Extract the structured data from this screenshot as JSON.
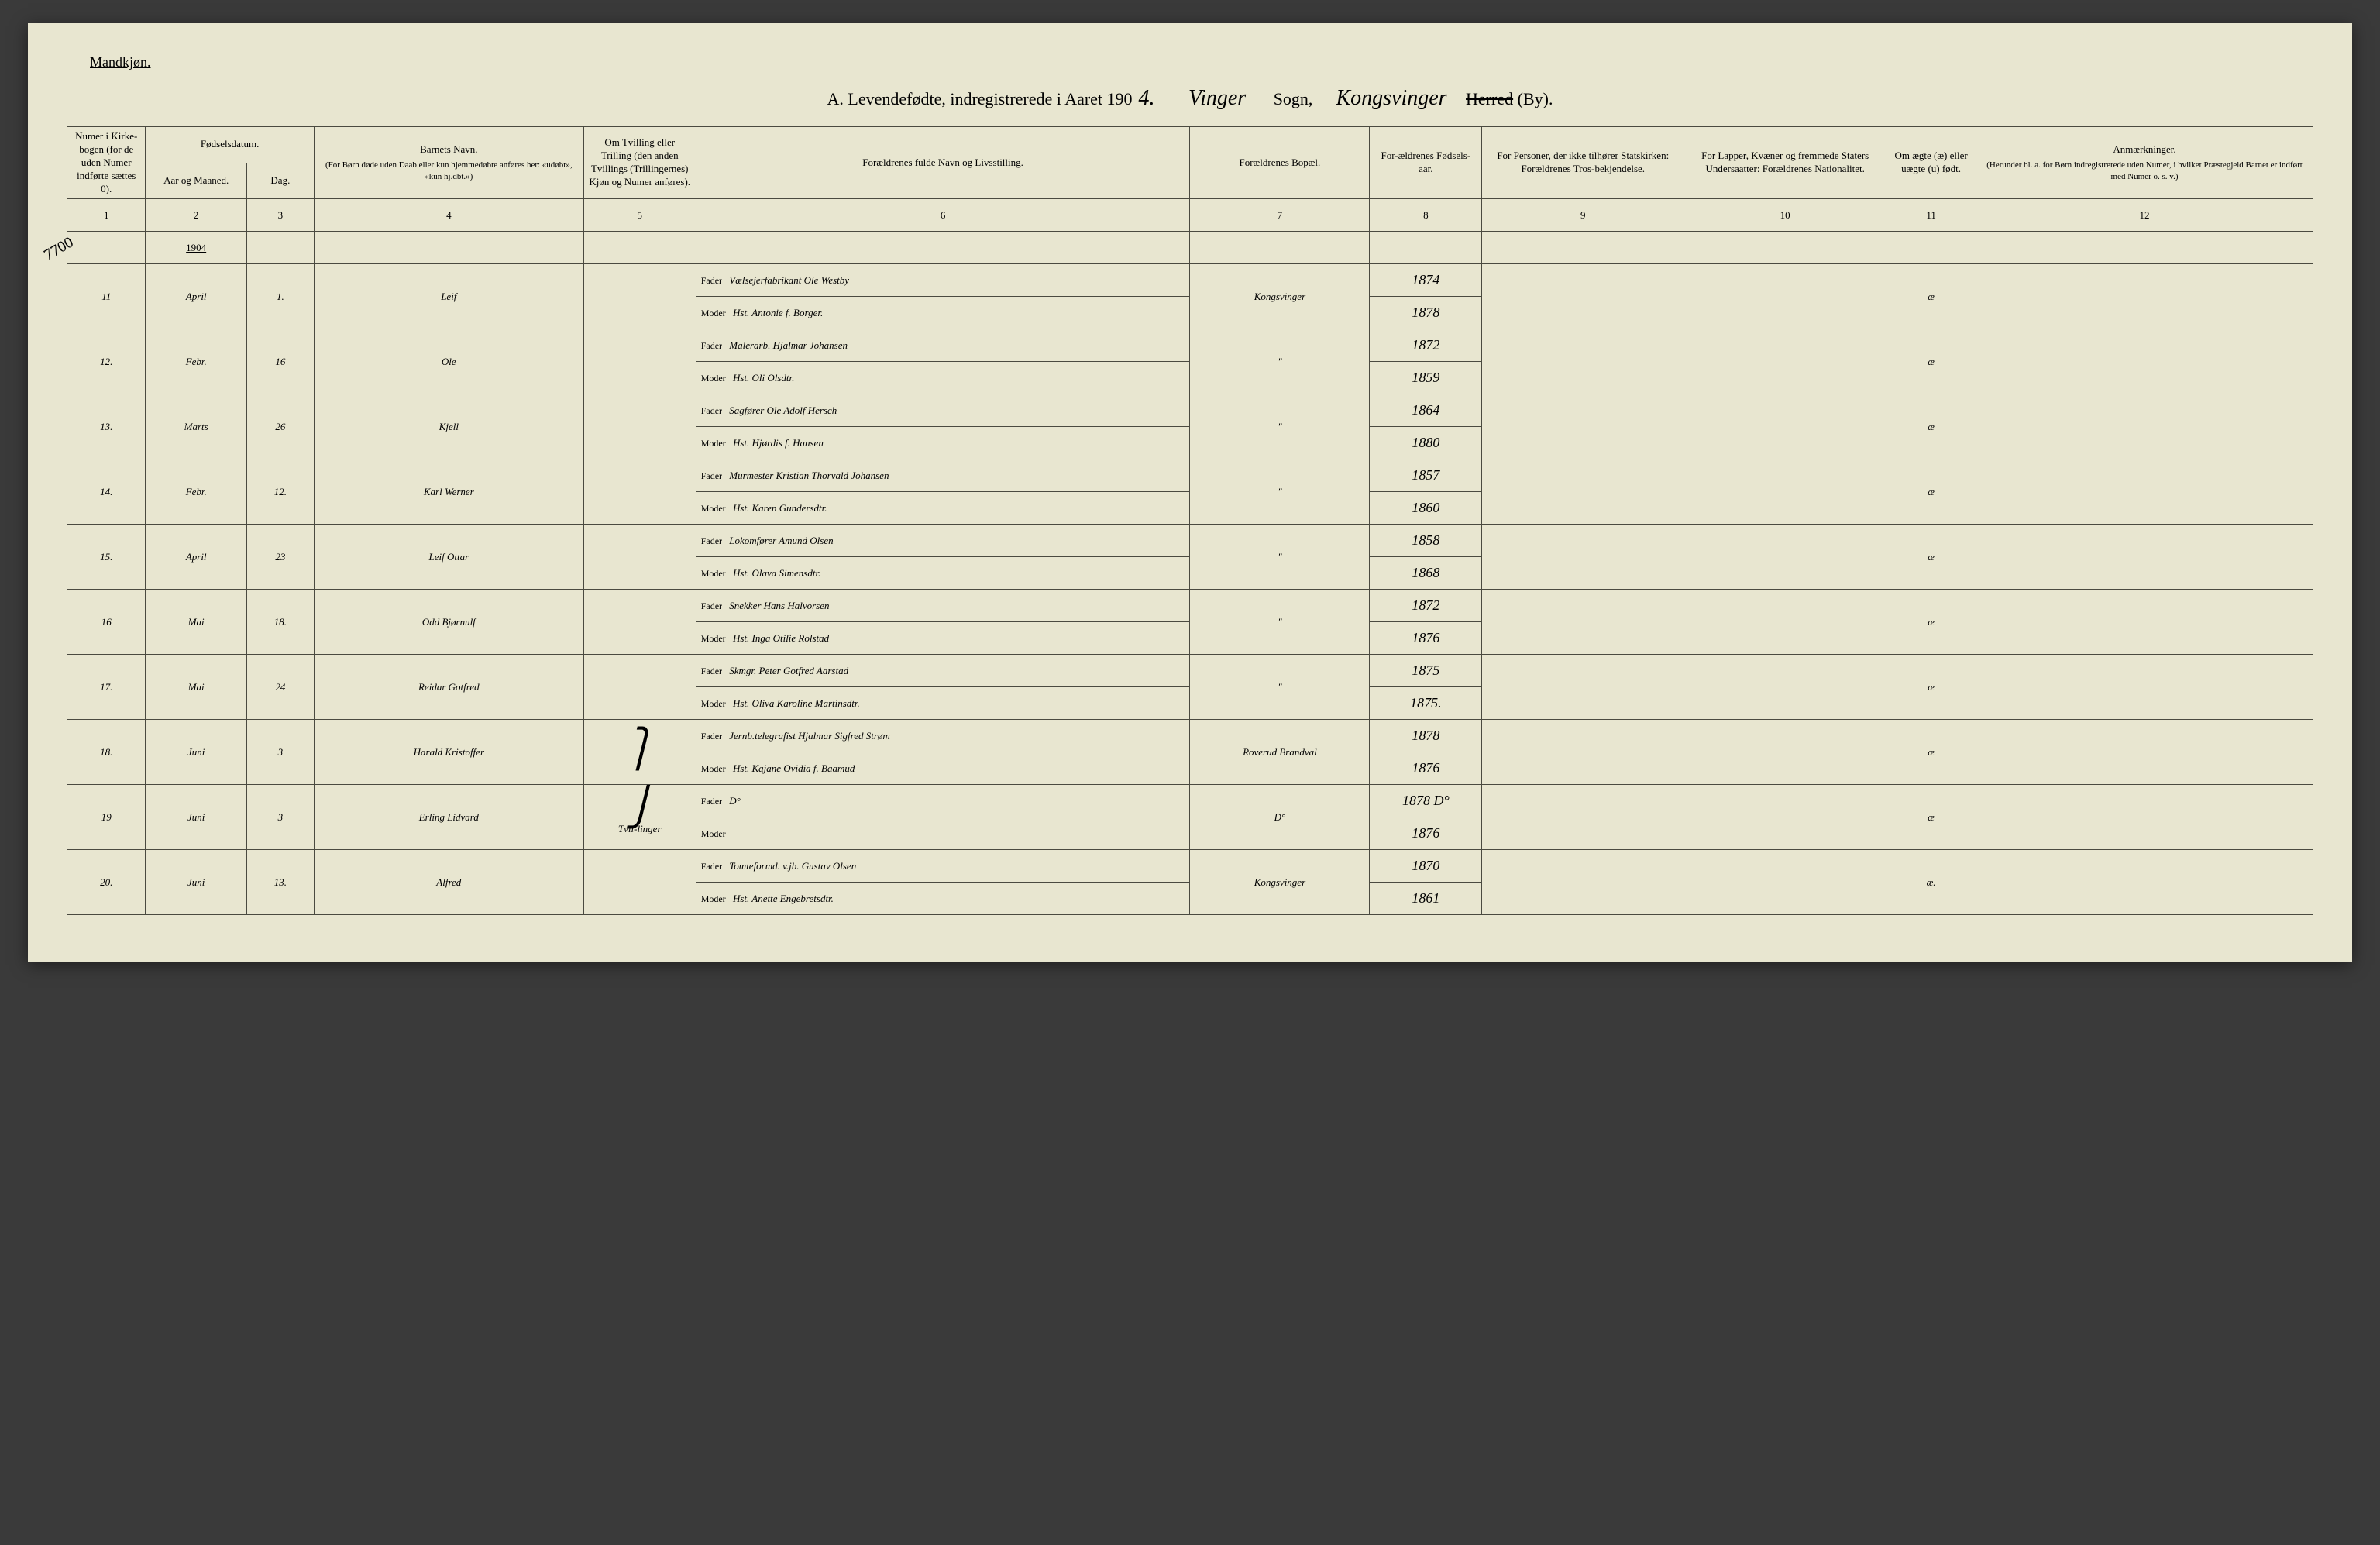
{
  "corner": "Mandkjøn.",
  "heading": {
    "prefix": "A.  Levendefødte, indregistrerede i Aaret 190",
    "year_digit": "4.",
    "parish_word": "Vinger",
    "sogn": "Sogn,",
    "district_word": "Kongsvinger",
    "herred": "Herred",
    "by": "(By)."
  },
  "side_number": "7700",
  "columns": {
    "c1": "Numer i Kirke-bogen (for de uden Numer indførte sættes 0).",
    "c2a": "Fødselsdatum.",
    "c2b": "Aar og Maaned.",
    "c2c": "Dag.",
    "c4": "Barnets Navn.",
    "c4sub": "(For Børn døde uden Daab eller kun hjemmedøbte anføres her: «udøbt», «kun hj.dbt.»)",
    "c5": "Om Tvilling eller Trilling (den anden Tvillings (Trillingernes) Kjøn og Numer anføres).",
    "c6": "Forældrenes fulde Navn og Livsstilling.",
    "c7": "Forældrenes Bopæl.",
    "c8": "For-ældrenes Fødsels-aar.",
    "c9": "For Personer, der ikke tilhører Statskirken: Forældrenes Tros-bekjendelse.",
    "c10": "For Lapper, Kvæner og fremmede Staters Undersaatter: Forældrenes Nationalitet.",
    "c11": "Om ægte (æ) eller uægte (u) født.",
    "c12": "Anmærkninger.",
    "c12sub": "(Herunder bl. a. for Børn indregistrerede uden Numer, i hvilket Præstegjeld Barnet er indført med Numer o. s. v.)"
  },
  "colnums": [
    "1",
    "2",
    "3",
    "4",
    "5",
    "6",
    "7",
    "8",
    "9",
    "10",
    "11",
    "12"
  ],
  "year_row": "1904",
  "fader": "Fader",
  "moder": "Moder",
  "twin_text": "Tvil-linger",
  "rows": [
    {
      "n": "11",
      "mon": "April",
      "day": "1.",
      "name": "Leif",
      "twin": "",
      "f": "Vælsejerfabrikant Ole Westby",
      "m": "Hst. Antonie f. Borger.",
      "bop": "Kongsvinger",
      "yf": "1874",
      "ym": "1878",
      "leg": "æ"
    },
    {
      "n": "12.",
      "mon": "Febr.",
      "day": "16",
      "name": "Ole",
      "twin": "",
      "f": "Malerarb. Hjalmar Johansen",
      "m": "Hst. Oli Olsdtr.",
      "bop": "\"",
      "yf": "1872",
      "ym": "1859",
      "leg": "æ"
    },
    {
      "n": "13.",
      "mon": "Marts",
      "day": "26",
      "name": "Kjell",
      "twin": "",
      "f": "Sagfører Ole Adolf Hersch",
      "m": "Hst. Hjørdis f. Hansen",
      "bop": "\"",
      "yf": "1864",
      "ym": "1880",
      "leg": "æ"
    },
    {
      "n": "14.",
      "mon": "Febr.",
      "day": "12.",
      "name": "Karl Werner",
      "twin": "",
      "f": "Murmester Kristian Thorvald Johansen",
      "m": "Hst. Karen Gundersdtr.",
      "bop": "\"",
      "yf": "1857",
      "ym": "1860",
      "leg": "æ"
    },
    {
      "n": "15.",
      "mon": "April",
      "day": "23",
      "name": "Leif Ottar",
      "twin": "",
      "f": "Lokomfører Amund Olsen",
      "m": "Hst. Olava Simensdtr.",
      "bop": "\"",
      "yf": "1858",
      "ym": "1868",
      "leg": "æ"
    },
    {
      "n": "16",
      "mon": "Mai",
      "day": "18.",
      "name": "Odd Bjørnulf",
      "twin": "",
      "f": "Snekker Hans Halvorsen",
      "m": "Hst. Inga Otilie Rolstad",
      "bop": "\"",
      "yf": "1872",
      "ym": "1876",
      "leg": "æ"
    },
    {
      "n": "17.",
      "mon": "Mai",
      "day": "24",
      "name": "Reidar Gotfred",
      "twin": "",
      "f": "Skmgr. Peter Gotfred Aarstad",
      "m": "Hst. Oliva Karoline Martinsdtr.",
      "bop": "\"",
      "yf": "1875",
      "ym": "1875.",
      "leg": "æ"
    },
    {
      "n": "18.",
      "mon": "Juni",
      "day": "3",
      "name": "Harald Kristoffer",
      "twin": "top",
      "f": "Jernb.telegrafist Hjalmar Sigfred Strøm",
      "m": "Hst. Kajane Ovidia f. Baamud",
      "bop": "Roverud Brandval",
      "yf": "1878",
      "ym": "1876",
      "leg": "æ"
    },
    {
      "n": "19",
      "mon": "Juni",
      "day": "3",
      "name": "Erling Lidvard",
      "twin": "bot",
      "f": "D°",
      "m": "",
      "bop": "D°",
      "yf": "1878 D°",
      "ym": "1876",
      "leg": "æ"
    },
    {
      "n": "20.",
      "mon": "Juni",
      "day": "13.",
      "name": "Alfred",
      "twin": "",
      "f": "Tomteformd. v.jb. Gustav Olsen",
      "m": "Hst. Anette Engebretsdtr.",
      "bop": "Kongsvinger",
      "yf": "1870",
      "ym": "1861",
      "leg": "æ."
    }
  ]
}
